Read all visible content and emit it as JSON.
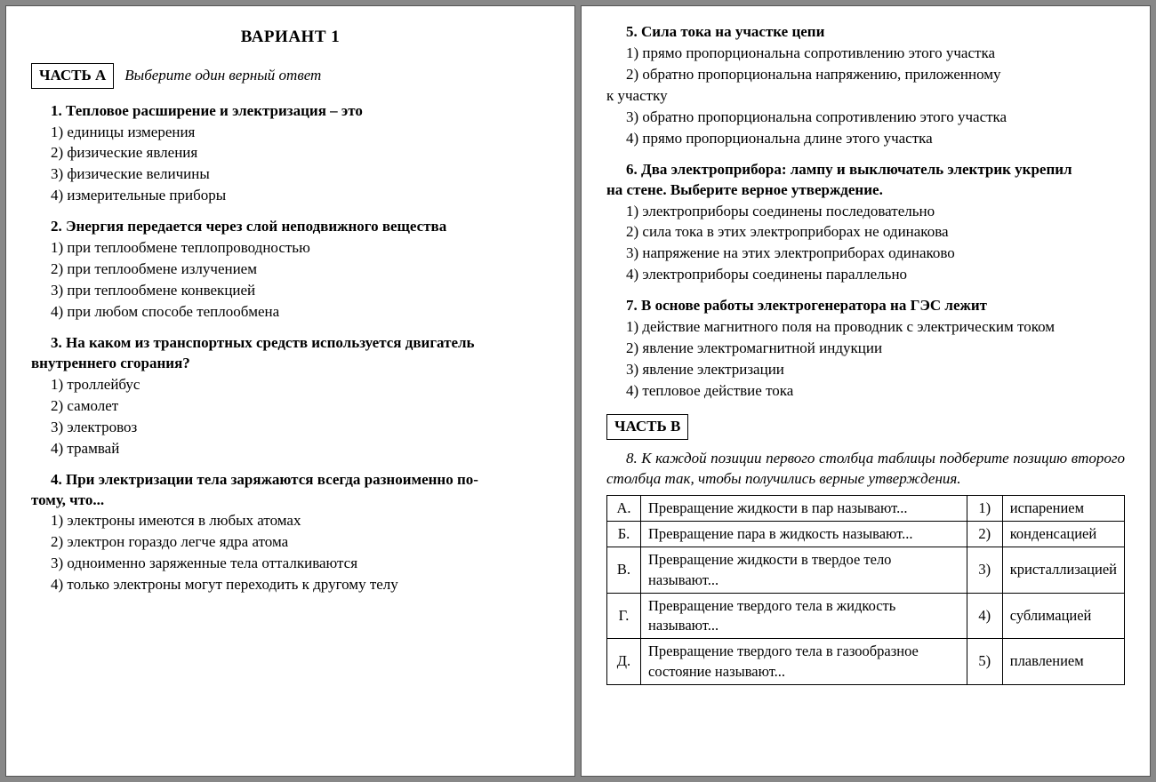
{
  "title": "ВАРИАНТ 1",
  "partA": {
    "badge": "ЧАСТЬ А",
    "instruction": "Выберите один верный ответ"
  },
  "partB": {
    "badge": "ЧАСТЬ В"
  },
  "q1": {
    "prompt": "1. Тепловое расширение и электризация – это",
    "o1": "1) единицы измерения",
    "o2": "2) физические явления",
    "o3": "3) физические величины",
    "o4": "4) измерительные приборы"
  },
  "q2": {
    "prompt": "2. Энергия передается через слой неподвижного вещества",
    "o1": "1) при теплообмене теплопроводностью",
    "o2": "2) при теплообмене излучением",
    "o3": "3) при теплообмене конвекцией",
    "o4": "4) при любом способе теплообмена"
  },
  "q3": {
    "prompt_l1": "3. На каком из транспортных средств используется двигатель",
    "prompt_l2": "внутреннего сгорания?",
    "o1": "1) троллейбус",
    "o2": "2) самолет",
    "o3": "3) электровоз",
    "o4": "4) трамвай"
  },
  "q4": {
    "prompt_l1": "4. При электризации тела заряжаются всегда разноименно по-",
    "prompt_l2": "тому, что...",
    "o1": "1) электроны имеются в любых атомах",
    "o2": "2) электрон гораздо легче ядра атома",
    "o3": "3) одноименно заряженные тела отталкиваются",
    "o4": "4) только электроны могут переходить к другому телу"
  },
  "q5": {
    "prompt": "5. Сила тока на участке цепи",
    "o1": "1) прямо пропорциональна сопротивлению этого участка",
    "o2a": "2) обратно пропорциональна напряжению, приложенному",
    "o2b": "к участку",
    "o3": "3) обратно пропорциональна сопротивлению этого участка",
    "o4": "4) прямо пропорциональна длине этого участка"
  },
  "q6": {
    "prompt_l1": "6. Два электроприбора: лампу и выключатель электрик укрепил",
    "prompt_l2": "на стене. Выберите верное утверждение.",
    "o1": "1) электроприборы соединены последовательно",
    "o2": "2) сила тока в этих электроприборах не одинакова",
    "o3": "3) напряжение на этих электроприборах одинаково",
    "o4": "4) электроприборы соединены параллельно"
  },
  "q7": {
    "prompt": "7. В основе работы электрогенератора на ГЭС лежит",
    "o1": "1) действие магнитного поля на проводник с электрическим током",
    "o2": "2) явление электромагнитной индукции",
    "o3": "3) явление электризации",
    "o4": "4) тепловое действие тока"
  },
  "q8": {
    "instruction": "8. К каждой позиции первого столбца таблицы подберите позицию второго столбца так, чтобы получились верные утверждения.",
    "rows": [
      {
        "L": "А.",
        "left": "Превращение жидкости в пар называют...",
        "N": "1)",
        "right": "испарением"
      },
      {
        "L": "Б.",
        "left": "Превращение пара в жидкость называют...",
        "N": "2)",
        "right": "конденсацией"
      },
      {
        "L": "В.",
        "left": "Превращение жидкости в твердое тело называют...",
        "N": "3)",
        "right": "кристаллизацией"
      },
      {
        "L": "Г.",
        "left": "Превращение твердого тела в жидкость называют...",
        "N": "4)",
        "right": "сублимацией"
      },
      {
        "L": "Д.",
        "left": "Превращение твердого тела в газообразное состояние называют...",
        "N": "5)",
        "right": "плавлением"
      }
    ]
  }
}
